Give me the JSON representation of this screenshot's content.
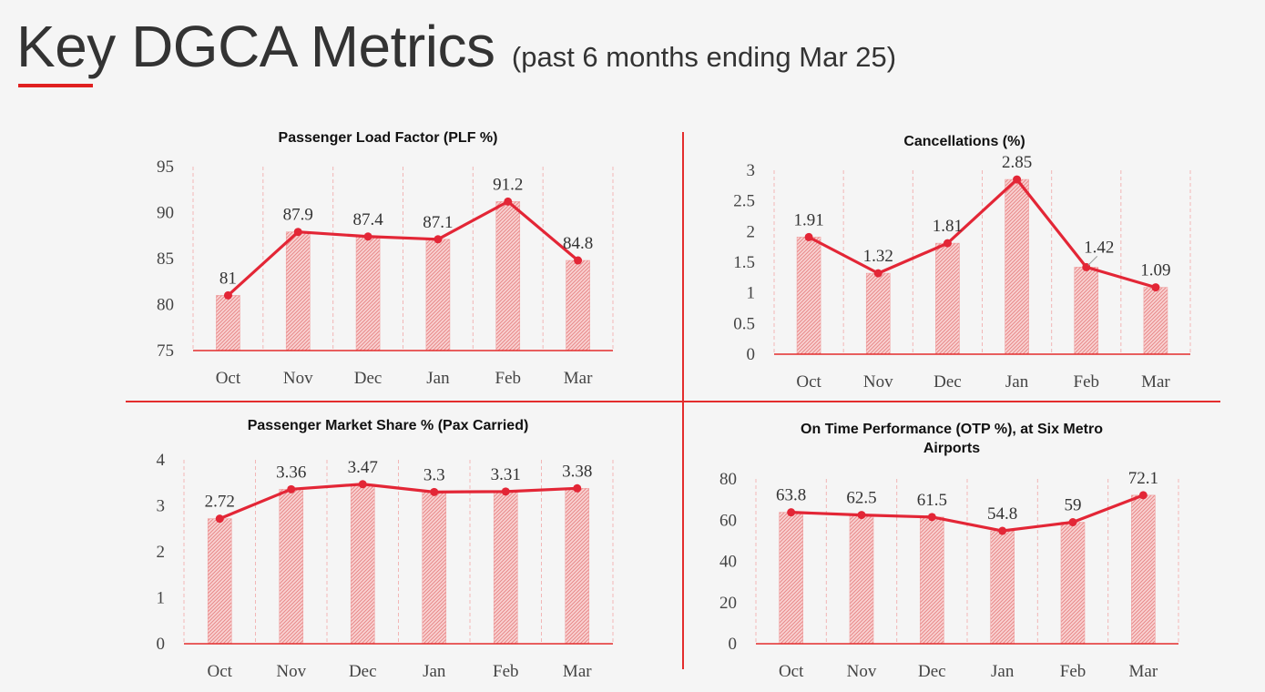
{
  "page": {
    "title": "Key DGCA Metrics",
    "subtitle": "(past 6 months ending Mar 25)",
    "accent_color": "#e02020"
  },
  "chart_data": [
    {
      "id": "plf",
      "type": "bar+line",
      "title": [
        "Passenger Load Factor (PLF %)"
      ],
      "categories": [
        "Oct",
        "Nov",
        "Dec",
        "Jan",
        "Feb",
        "Mar"
      ],
      "values": [
        81,
        87.9,
        87.4,
        87.1,
        91.2,
        84.8
      ],
      "value_labels": [
        "81",
        "87.9",
        "87.4",
        "87.1",
        "91.2",
        "84.8"
      ],
      "ylim": [
        75,
        95
      ],
      "yticks": [
        75,
        80,
        85,
        90,
        95
      ],
      "ytick_labels": [
        "75",
        "80",
        "85",
        "90",
        "95"
      ],
      "grid": "vertical-dashed",
      "bar_color": "#f3a8a8",
      "line_color": "#e32636"
    },
    {
      "id": "cancellations",
      "type": "bar+line",
      "title": [
        "Cancellations (%)"
      ],
      "categories": [
        "Oct",
        "Nov",
        "Dec",
        "Jan",
        "Feb",
        "Mar"
      ],
      "values": [
        1.91,
        1.32,
        1.81,
        2.85,
        1.42,
        1.09
      ],
      "value_labels": [
        "1.91",
        "1.32",
        "1.81",
        "2.85",
        "1.42",
        "1.09"
      ],
      "ylim": [
        0,
        3
      ],
      "yticks": [
        0,
        0.5,
        1,
        1.5,
        2,
        2.5,
        3
      ],
      "ytick_labels": [
        "0",
        "0.5",
        "1",
        "1.5",
        "2",
        "2.5",
        "3"
      ],
      "grid": "vertical-dashed",
      "bar_color": "#f3a8a8",
      "line_color": "#e32636"
    },
    {
      "id": "market-share",
      "type": "bar+line",
      "title": [
        "Passenger Market Share % (Pax Carried)"
      ],
      "categories": [
        "Oct",
        "Nov",
        "Dec",
        "Jan",
        "Feb",
        "Mar"
      ],
      "values": [
        2.72,
        3.36,
        3.47,
        3.3,
        3.31,
        3.38
      ],
      "value_labels": [
        "2.72",
        "3.36",
        "3.47",
        "3.3",
        "3.31",
        "3.38"
      ],
      "ylim": [
        0,
        4
      ],
      "yticks": [
        0,
        1,
        2,
        3,
        4
      ],
      "ytick_labels": [
        "0",
        "1",
        "2",
        "3",
        "4"
      ],
      "grid": "vertical-dashed",
      "bar_color": "#f3a8a8",
      "line_color": "#e32636"
    },
    {
      "id": "otp",
      "type": "bar+line",
      "title": [
        "On Time Performance (OTP %), at Six Metro",
        "Airports"
      ],
      "categories": [
        "Oct",
        "Nov",
        "Dec",
        "Jan",
        "Feb",
        "Mar"
      ],
      "values": [
        63.8,
        62.5,
        61.5,
        54.8,
        59,
        72.1
      ],
      "value_labels": [
        "63.8",
        "62.5",
        "61.5",
        "54.8",
        "59",
        "72.1"
      ],
      "ylim": [
        0,
        80
      ],
      "yticks": [
        0,
        20,
        40,
        60,
        80
      ],
      "ytick_labels": [
        "0",
        "20",
        "40",
        "60",
        "80"
      ],
      "grid": "vertical-dashed",
      "bar_color": "#f3a8a8",
      "line_color": "#e32636"
    }
  ]
}
